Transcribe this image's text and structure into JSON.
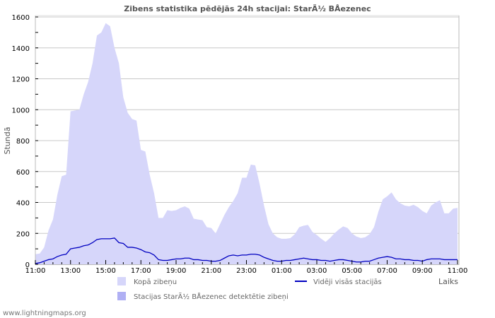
{
  "title": "Zibens statistika pēdējās 24h stacijai: StarÃ½ BÅ\u0004ezenec",
  "footer": "www.lightningmaps.org",
  "chart_data": {
    "type": "area",
    "title": "Zibens statistika pēdējās 24h stacijai: StarÃ½ BÅ\u0004ezenec",
    "xlabel": "Laiks",
    "ylabel": "Stundā",
    "ylim": [
      0,
      1600
    ],
    "yticks": [
      0,
      200,
      400,
      600,
      800,
      1000,
      1200,
      1400,
      1600
    ],
    "xticks": [
      "11:00",
      "13:00",
      "15:00",
      "17:00",
      "19:00",
      "21:00",
      "23:00",
      "01:00",
      "03:00",
      "05:00",
      "07:00",
      "09:00",
      "11:00"
    ],
    "grid": true,
    "legend_position": "bottom",
    "x_hours": [
      0,
      0.25,
      0.5,
      0.75,
      1,
      1.25,
      1.5,
      1.75,
      2,
      2.25,
      2.5,
      2.75,
      3,
      3.25,
      3.5,
      3.75,
      4,
      4.25,
      4.5,
      4.75,
      5,
      5.25,
      5.5,
      5.75,
      6,
      6.25,
      6.5,
      6.75,
      7,
      7.25,
      7.5,
      7.75,
      8,
      8.25,
      8.5,
      8.75,
      9,
      9.25,
      9.5,
      9.75,
      10,
      10.25,
      10.5,
      10.75,
      11,
      11.25,
      11.5,
      11.75,
      12,
      12.25,
      12.5,
      12.75,
      13,
      13.25,
      13.5,
      13.75,
      14,
      14.25,
      14.5,
      14.75,
      15,
      15.25,
      15.5,
      15.75,
      16,
      16.25,
      16.5,
      16.75,
      17,
      17.25,
      17.5,
      17.75,
      18,
      18.25,
      18.5,
      18.75,
      19,
      19.25,
      19.5,
      19.75,
      20,
      20.25,
      20.5,
      20.75,
      21,
      21.25,
      21.5,
      21.75,
      22,
      22.25,
      22.5,
      22.75,
      23,
      23.25,
      23.5,
      23.75,
      24
    ],
    "series": [
      {
        "name": "Kopā zibeņu",
        "type": "area",
        "color": "#d6d6fa",
        "values": [
          65,
          70,
          110,
          220,
          290,
          450,
          570,
          580,
          990,
          995,
          1000,
          1100,
          1180,
          1300,
          1480,
          1500,
          1560,
          1540,
          1400,
          1300,
          1080,
          980,
          940,
          930,
          740,
          730,
          580,
          460,
          300,
          300,
          350,
          345,
          350,
          365,
          375,
          360,
          295,
          290,
          285,
          240,
          235,
          200,
          260,
          320,
          370,
          410,
          460,
          560,
          560,
          645,
          640,
          520,
          380,
          260,
          200,
          175,
          165,
          165,
          170,
          195,
          240,
          250,
          255,
          210,
          190,
          165,
          145,
          170,
          200,
          225,
          245,
          235,
          200,
          180,
          170,
          175,
          195,
          240,
          340,
          420,
          440,
          465,
          420,
          395,
          380,
          375,
          385,
          370,
          345,
          330,
          380,
          400,
          415,
          330,
          330,
          360,
          365
        ]
      },
      {
        "name": "Stacijas StarÃ½ BÅ\u0004ezenec detektētie zibeņi",
        "type": "area",
        "color": "#b0b0f4",
        "values": []
      },
      {
        "name": "Vidēji visās stacijās",
        "type": "line",
        "color": "#0000c0",
        "values": [
          5,
          10,
          20,
          30,
          35,
          50,
          60,
          65,
          100,
          105,
          110,
          120,
          125,
          140,
          160,
          165,
          165,
          165,
          170,
          140,
          135,
          110,
          110,
          105,
          95,
          80,
          75,
          60,
          30,
          25,
          25,
          30,
          35,
          35,
          40,
          40,
          30,
          30,
          25,
          25,
          20,
          20,
          25,
          40,
          55,
          60,
          55,
          60,
          60,
          65,
          65,
          60,
          45,
          35,
          25,
          20,
          20,
          25,
          25,
          30,
          35,
          40,
          35,
          30,
          30,
          25,
          25,
          20,
          25,
          30,
          30,
          25,
          20,
          15,
          15,
          20,
          20,
          30,
          40,
          45,
          50,
          45,
          35,
          35,
          30,
          30,
          25,
          25,
          20,
          30,
          35,
          35,
          35,
          30,
          30,
          30,
          30
        ]
      }
    ]
  },
  "legend": {
    "total": "Kopā zibeņu",
    "station": "Stacijas StarÃ½ BÅ\u0004ezenec detektētie zibeņi",
    "average": "Vidēji visās stacijās"
  },
  "colors": {
    "total_fill": "#d6d6fa",
    "station_fill": "#b0b0f4",
    "average_line": "#0000c0",
    "grid": "#c8c8c8"
  }
}
